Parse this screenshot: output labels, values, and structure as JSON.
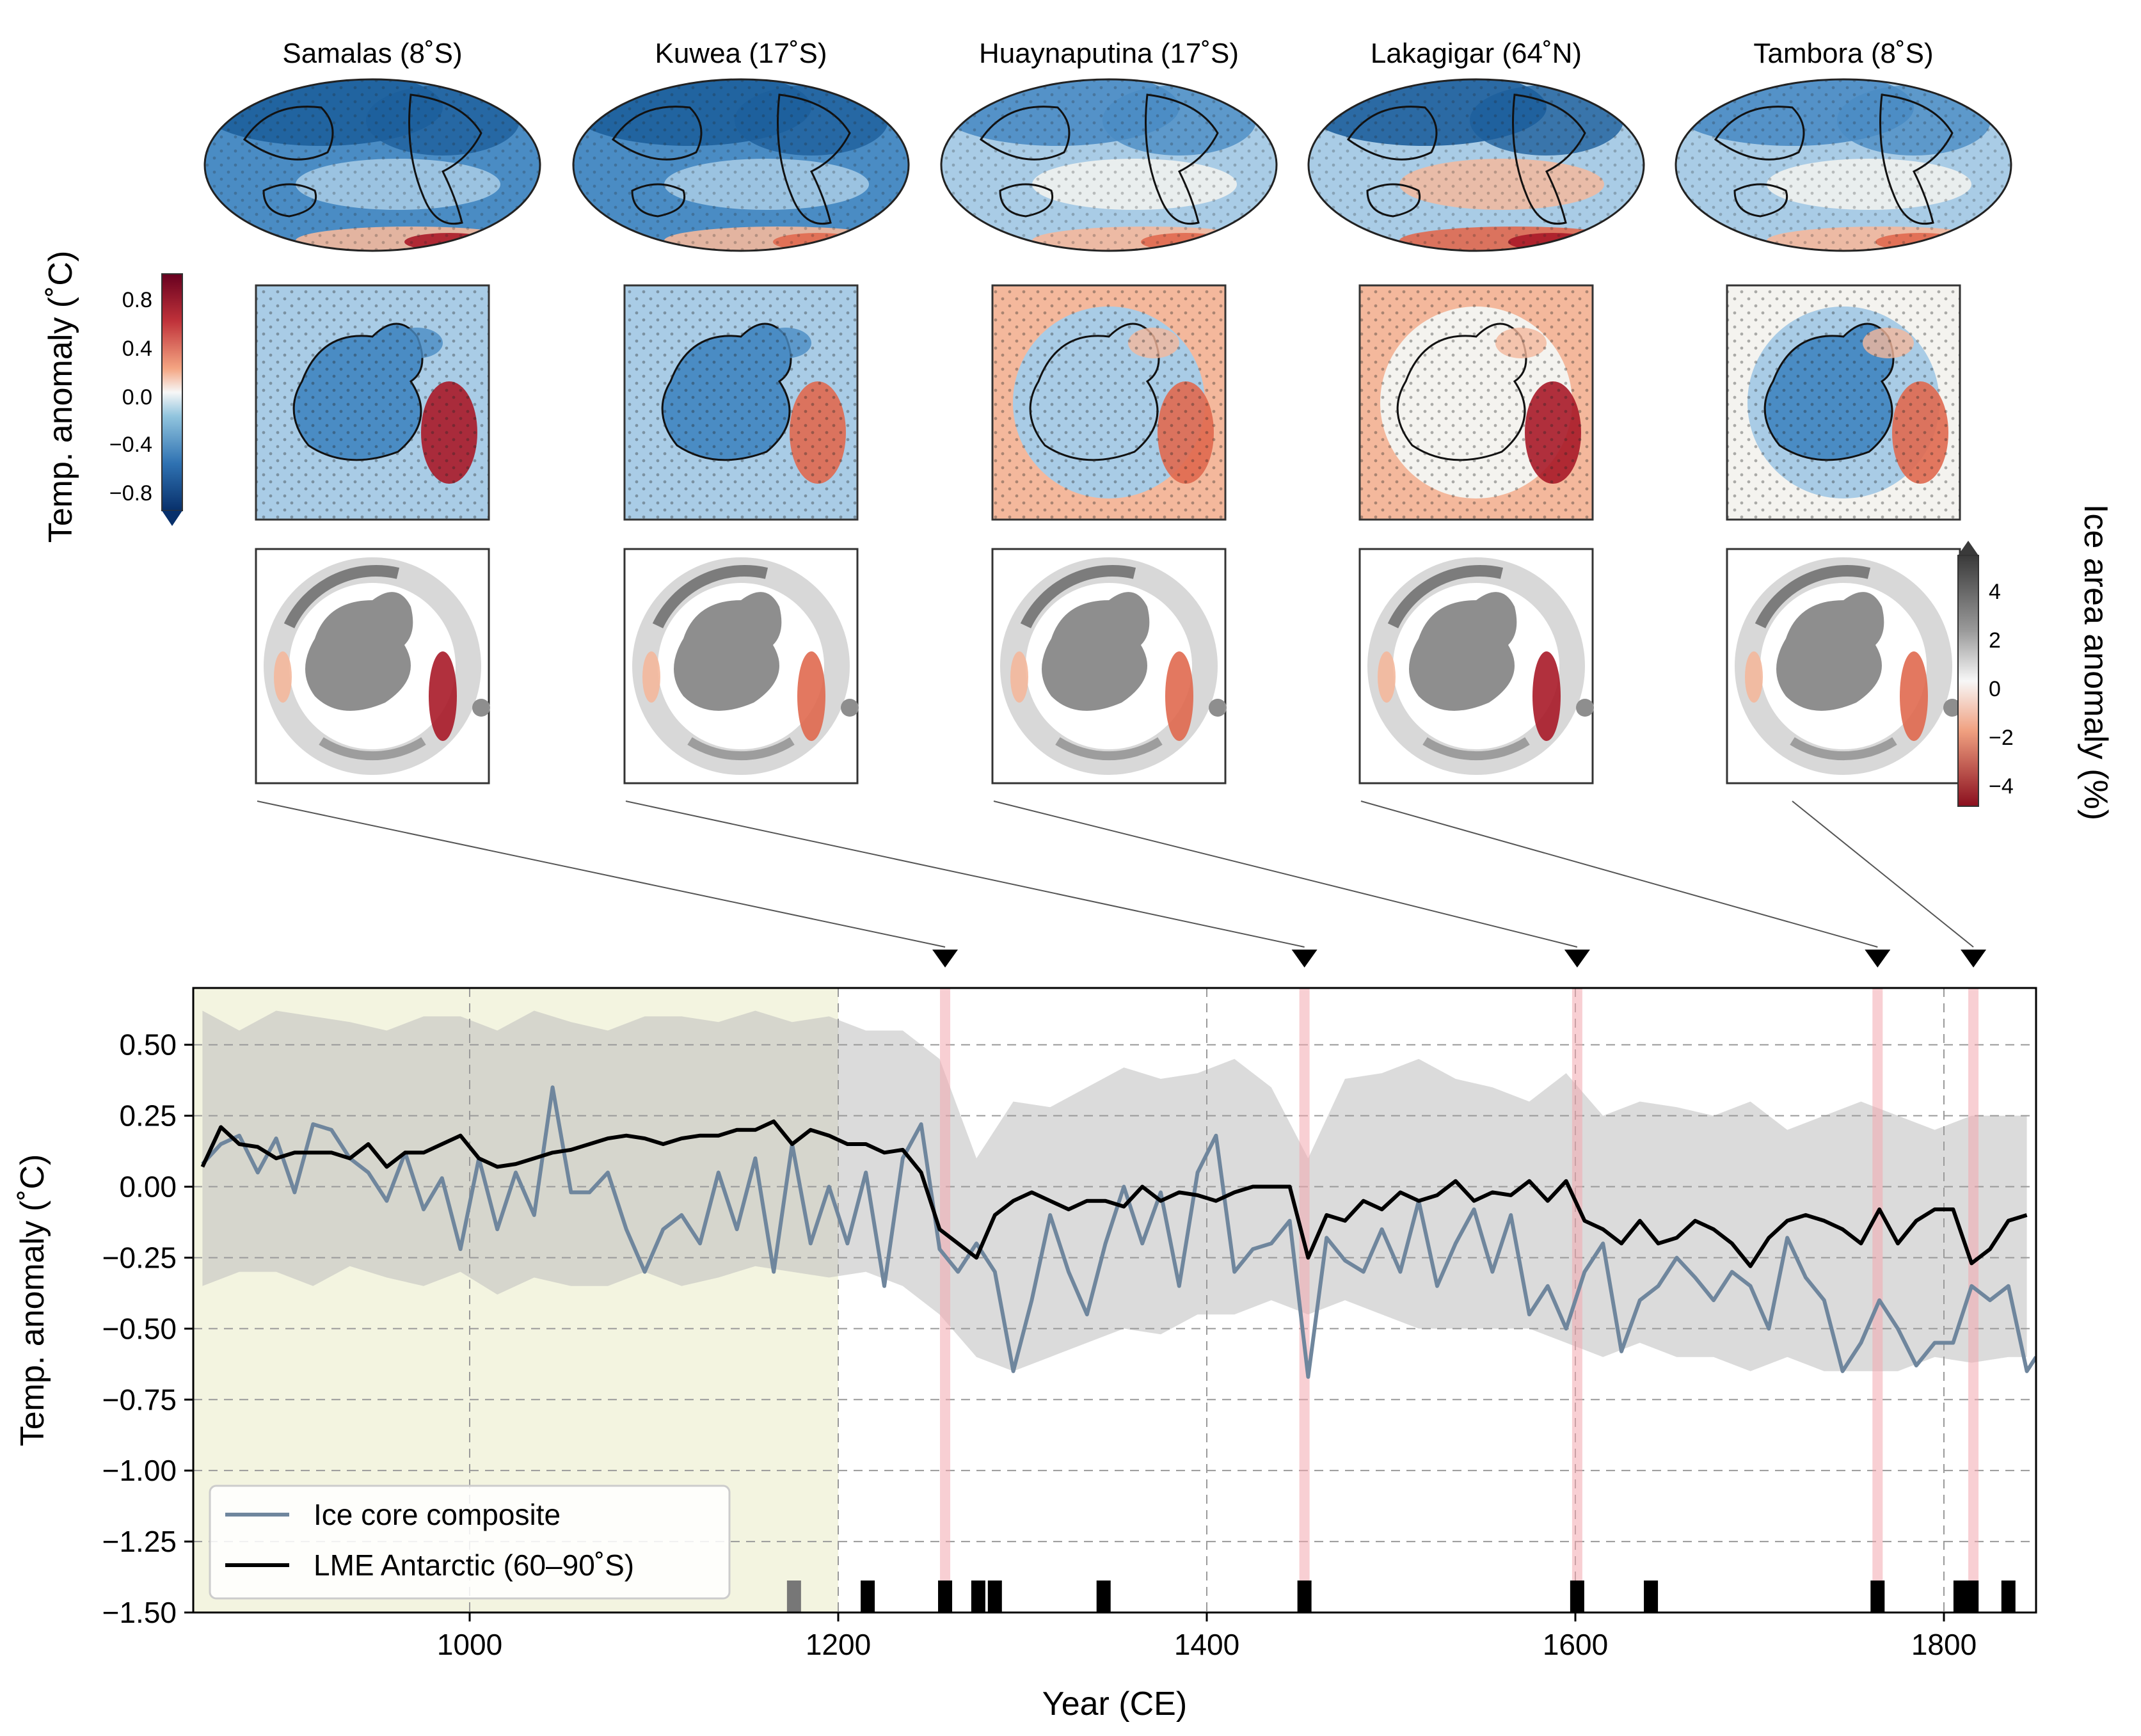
{
  "colors": {
    "cold_dark": "#1d5f9c",
    "cold_mid": "#4a8cc4",
    "cold_light": "#a9cce6",
    "neutral": "#f4f3ef",
    "warm_light": "#f4b89c",
    "warm_mid": "#e0694f",
    "warm_dark": "#a81a28",
    "land_gray": "#8e8e8e",
    "ice_core": "#6f869d",
    "lme": "#000000",
    "shade": "#cfcfcf",
    "preindustrial_shade": "#f3f4e0",
    "event_band": "#f2a8ae"
  },
  "volcanoes": [
    {
      "name": "Samalas (8˚S)",
      "year": 1258
    },
    {
      "name": "Kuwea (17˚S)",
      "year": 1453
    },
    {
      "name": "Huaynaputina (17˚S)",
      "year": 1601
    },
    {
      "name": "Lakagigar (64˚N)",
      "year": 1764
    },
    {
      "name": "Tambora (8˚S)",
      "year": 1816
    }
  ],
  "temp_colorbar": {
    "label": "Temp. anomaly (˚C)",
    "ticks": [
      "0.8",
      "0.4",
      "0.0",
      "−0.4",
      "−0.8"
    ],
    "range": [
      -1.0,
      1.0
    ]
  },
  "ice_colorbar": {
    "label": "Ice area anomaly (%)",
    "ticks": [
      "4",
      "2",
      "0",
      "−2",
      "−4"
    ],
    "range": [
      -5,
      5
    ]
  },
  "chart_data": {
    "type": "line",
    "xlabel": "Year (CE)",
    "ylabel": "Temp. anomaly (˚C)",
    "xlim": [
      850,
      1850
    ],
    "ylim": [
      -1.5,
      0.7
    ],
    "xticks": [
      "1000",
      "1200",
      "1400",
      "1600",
      "1800"
    ],
    "yticks": [
      "0.50",
      "0.25",
      "0.00",
      "−0.25",
      "−0.50",
      "−0.75",
      "−1.00",
      "−1.25",
      "−1.50"
    ],
    "grid": true,
    "shaded_period": [
      850,
      1200
    ],
    "event_years": [
      1258,
      1453,
      1601,
      1764,
      1816
    ],
    "legend_position": "lower-left",
    "series": [
      {
        "name": "Ice core composite",
        "x": [
          855,
          865,
          875,
          885,
          895,
          905,
          915,
          925,
          935,
          945,
          955,
          965,
          975,
          985,
          995,
          1005,
          1015,
          1025,
          1035,
          1045,
          1055,
          1065,
          1075,
          1085,
          1095,
          1105,
          1115,
          1125,
          1135,
          1145,
          1155,
          1165,
          1175,
          1185,
          1195,
          1205,
          1215,
          1225,
          1235,
          1245,
          1255,
          1265,
          1275,
          1285,
          1295,
          1305,
          1315,
          1325,
          1335,
          1345,
          1355,
          1365,
          1375,
          1385,
          1395,
          1405,
          1415,
          1425,
          1435,
          1445,
          1455,
          1465,
          1475,
          1485,
          1495,
          1505,
          1515,
          1525,
          1535,
          1545,
          1555,
          1565,
          1575,
          1585,
          1595,
          1605,
          1615,
          1625,
          1635,
          1645,
          1655,
          1665,
          1675,
          1685,
          1695,
          1705,
          1715,
          1725,
          1735,
          1745,
          1755,
          1765,
          1775,
          1785,
          1795,
          1805,
          1815,
          1825,
          1835,
          1845,
          1850
        ],
        "values": [
          0.08,
          0.15,
          0.18,
          0.05,
          0.17,
          -0.02,
          0.22,
          0.2,
          0.1,
          0.05,
          -0.05,
          0.12,
          -0.08,
          0.03,
          -0.22,
          0.1,
          -0.15,
          0.05,
          -0.1,
          0.35,
          -0.02,
          -0.02,
          0.05,
          -0.15,
          -0.3,
          -0.15,
          -0.1,
          -0.2,
          0.05,
          -0.15,
          0.1,
          -0.3,
          0.15,
          -0.2,
          0.0,
          -0.2,
          0.05,
          -0.35,
          0.1,
          0.22,
          -0.22,
          -0.3,
          -0.2,
          -0.3,
          -0.65,
          -0.4,
          -0.1,
          -0.3,
          -0.45,
          -0.2,
          0.0,
          -0.2,
          -0.02,
          -0.35,
          0.05,
          0.18,
          -0.3,
          -0.22,
          -0.2,
          -0.12,
          -0.67,
          -0.18,
          -0.26,
          -0.3,
          -0.15,
          -0.3,
          -0.05,
          -0.35,
          -0.2,
          -0.08,
          -0.3,
          -0.1,
          -0.45,
          -0.35,
          -0.5,
          -0.3,
          -0.2,
          -0.58,
          -0.4,
          -0.35,
          -0.25,
          -0.32,
          -0.4,
          -0.3,
          -0.35,
          -0.5,
          -0.18,
          -0.32,
          -0.4,
          -0.65,
          -0.55,
          -0.4,
          -0.5,
          -0.63,
          -0.55,
          -0.55,
          -0.35,
          -0.4,
          -0.35,
          -0.65,
          -0.6
        ]
      },
      {
        "name": "LME Antarctic (60–90˚S)",
        "x": [
          855,
          865,
          875,
          885,
          895,
          905,
          915,
          925,
          935,
          945,
          955,
          965,
          975,
          985,
          995,
          1005,
          1015,
          1025,
          1035,
          1045,
          1055,
          1065,
          1075,
          1085,
          1095,
          1105,
          1115,
          1125,
          1135,
          1145,
          1155,
          1165,
          1175,
          1185,
          1195,
          1205,
          1215,
          1225,
          1235,
          1245,
          1255,
          1265,
          1275,
          1285,
          1295,
          1305,
          1315,
          1325,
          1335,
          1345,
          1355,
          1365,
          1375,
          1385,
          1395,
          1405,
          1415,
          1425,
          1435,
          1445,
          1455,
          1465,
          1475,
          1485,
          1495,
          1505,
          1515,
          1525,
          1535,
          1545,
          1555,
          1565,
          1575,
          1585,
          1595,
          1605,
          1615,
          1625,
          1635,
          1645,
          1655,
          1665,
          1675,
          1685,
          1695,
          1705,
          1715,
          1725,
          1735,
          1745,
          1755,
          1765,
          1775,
          1785,
          1795,
          1805,
          1815,
          1825,
          1835,
          1845
        ],
        "values": [
          0.07,
          0.21,
          0.15,
          0.14,
          0.1,
          0.12,
          0.12,
          0.12,
          0.1,
          0.15,
          0.07,
          0.12,
          0.12,
          0.15,
          0.18,
          0.1,
          0.07,
          0.08,
          0.1,
          0.12,
          0.13,
          0.15,
          0.17,
          0.18,
          0.17,
          0.15,
          0.17,
          0.18,
          0.18,
          0.2,
          0.2,
          0.23,
          0.15,
          0.2,
          0.18,
          0.15,
          0.15,
          0.12,
          0.13,
          0.05,
          -0.15,
          -0.2,
          -0.25,
          -0.1,
          -0.05,
          -0.02,
          -0.05,
          -0.08,
          -0.05,
          -0.05,
          -0.07,
          0.0,
          -0.05,
          -0.02,
          -0.03,
          -0.05,
          -0.02,
          0.0,
          0.0,
          0.0,
          -0.25,
          -0.1,
          -0.12,
          -0.05,
          -0.08,
          -0.02,
          -0.05,
          -0.03,
          0.02,
          -0.05,
          -0.02,
          -0.03,
          0.02,
          -0.05,
          0.02,
          -0.12,
          -0.15,
          -0.2,
          -0.12,
          -0.2,
          -0.18,
          -0.12,
          -0.15,
          -0.2,
          -0.28,
          -0.18,
          -0.12,
          -0.1,
          -0.12,
          -0.15,
          -0.2,
          -0.08,
          -0.2,
          -0.12,
          -0.08,
          -0.08,
          -0.27,
          -0.22,
          -0.12,
          -0.1
        ]
      }
    ],
    "uncertainty_band": {
      "x": [
        855,
        875,
        895,
        915,
        935,
        955,
        975,
        995,
        1015,
        1035,
        1055,
        1075,
        1095,
        1115,
        1135,
        1155,
        1175,
        1195,
        1215,
        1235,
        1255,
        1275,
        1295,
        1315,
        1335,
        1355,
        1375,
        1395,
        1415,
        1435,
        1455,
        1475,
        1495,
        1515,
        1535,
        1555,
        1575,
        1595,
        1615,
        1635,
        1655,
        1675,
        1695,
        1715,
        1735,
        1755,
        1775,
        1795,
        1815,
        1835,
        1845
      ],
      "upper": [
        0.62,
        0.55,
        0.62,
        0.6,
        0.58,
        0.55,
        0.6,
        0.6,
        0.55,
        0.62,
        0.58,
        0.55,
        0.6,
        0.6,
        0.58,
        0.62,
        0.58,
        0.6,
        0.55,
        0.55,
        0.45,
        0.1,
        0.3,
        0.28,
        0.35,
        0.42,
        0.38,
        0.4,
        0.45,
        0.35,
        0.1,
        0.38,
        0.4,
        0.45,
        0.38,
        0.35,
        0.3,
        0.4,
        0.25,
        0.3,
        0.28,
        0.25,
        0.3,
        0.2,
        0.25,
        0.3,
        0.25,
        0.2,
        0.25,
        0.25,
        0.25
      ],
      "lower": [
        -0.35,
        -0.3,
        -0.3,
        -0.35,
        -0.28,
        -0.32,
        -0.35,
        -0.3,
        -0.38,
        -0.32,
        -0.35,
        -0.35,
        -0.3,
        -0.35,
        -0.32,
        -0.28,
        -0.3,
        -0.32,
        -0.3,
        -0.35,
        -0.45,
        -0.6,
        -0.65,
        -0.6,
        -0.55,
        -0.5,
        -0.52,
        -0.45,
        -0.45,
        -0.4,
        -0.45,
        -0.4,
        -0.45,
        -0.5,
        -0.5,
        -0.5,
        -0.5,
        -0.55,
        -0.6,
        -0.55,
        -0.6,
        -0.6,
        -0.65,
        -0.6,
        -0.65,
        -0.65,
        -0.65,
        -0.6,
        -0.62,
        -0.6,
        -0.6
      ]
    },
    "eruption_markers": [
      {
        "year": 1176,
        "color": "#777777"
      },
      {
        "year": 1216,
        "color": "#000000"
      },
      {
        "year": 1258,
        "color": "#000000"
      },
      {
        "year": 1276,
        "color": "#000000"
      },
      {
        "year": 1285,
        "color": "#000000"
      },
      {
        "year": 1344,
        "color": "#000000"
      },
      {
        "year": 1453,
        "color": "#000000"
      },
      {
        "year": 1601,
        "color": "#000000"
      },
      {
        "year": 1641,
        "color": "#000000"
      },
      {
        "year": 1764,
        "color": "#000000"
      },
      {
        "year": 1809,
        "color": "#000000"
      },
      {
        "year": 1815,
        "color": "#000000"
      },
      {
        "year": 1835,
        "color": "#000000"
      }
    ]
  }
}
